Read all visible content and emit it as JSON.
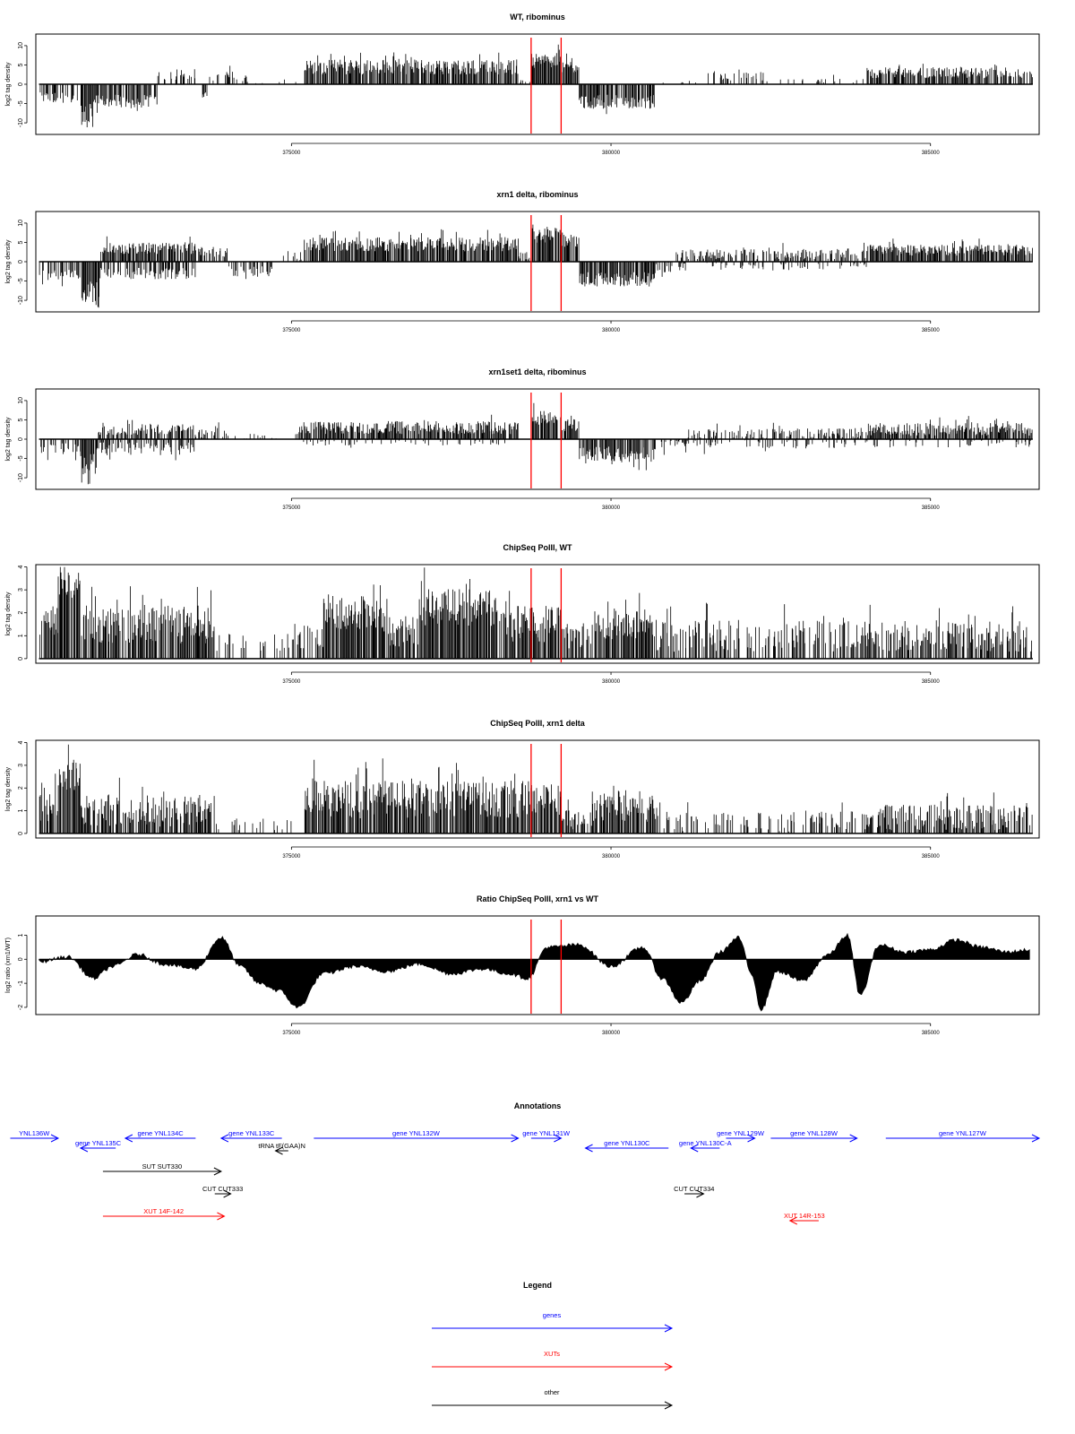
{
  "chart_data": [
    {
      "type": "bar",
      "title": "WT, ribominus",
      "ylabel": "log2 tag density",
      "xlim": [
        371000,
        386700
      ],
      "ylim": [
        -13,
        13
      ],
      "yticks": [
        10,
        5,
        0,
        -5,
        -10
      ],
      "xticks": [
        375000,
        380000,
        385000
      ],
      "markers": [
        378750,
        379220
      ],
      "regions": [
        {
          "x0": 371050,
          "x1": 371700,
          "v": -3.5,
          "amp": 1.0,
          "density": 0.55
        },
        {
          "x0": 371700,
          "x1": 371900,
          "v": -8.5,
          "amp": 2.5,
          "density": 0.95
        },
        {
          "x0": 371900,
          "x1": 372900,
          "v": -4.5,
          "amp": 1.3,
          "density": 0.8
        },
        {
          "x0": 372900,
          "x1": 373500,
          "v": 2.5,
          "amp": 1.0,
          "density": 0.4
        },
        {
          "x0": 373600,
          "x1": 373700,
          "v": -3.0,
          "amp": 1.0,
          "density": 0.5
        },
        {
          "x0": 373700,
          "x1": 374300,
          "v": 2.0,
          "amp": 1.0,
          "density": 0.35
        },
        {
          "x0": 374300,
          "x1": 375150,
          "v": 0.3,
          "amp": 0.5,
          "density": 0.15
        },
        {
          "x0": 375200,
          "x1": 378550,
          "v": 4.5,
          "amp": 1.4,
          "density": 0.9
        },
        {
          "x0": 378550,
          "x1": 378750,
          "v": 0.6,
          "amp": 0.4,
          "density": 0.3
        },
        {
          "x0": 378750,
          "x1": 379220,
          "v": 6.0,
          "amp": 1.5,
          "density": 0.95
        },
        {
          "x0": 379220,
          "x1": 379500,
          "v": 4.5,
          "amp": 1.2,
          "density": 0.9
        },
        {
          "x0": 379500,
          "x1": 380700,
          "v": -4.5,
          "amp": 1.3,
          "density": 0.85
        },
        {
          "x0": 380700,
          "x1": 381500,
          "v": 0.3,
          "amp": 0.6,
          "density": 0.15
        },
        {
          "x0": 381500,
          "x1": 382400,
          "v": 2.0,
          "amp": 0.9,
          "density": 0.4
        },
        {
          "x0": 382400,
          "x1": 384000,
          "v": 0.4,
          "amp": 0.7,
          "density": 0.2
        },
        {
          "x0": 384000,
          "x1": 386600,
          "v": 3.0,
          "amp": 1.0,
          "density": 0.8
        }
      ]
    },
    {
      "type": "bar",
      "title": "xrn1 delta, ribominus",
      "ylabel": "log2 tag density",
      "xlim": [
        371000,
        386700
      ],
      "ylim": [
        -13,
        13
      ],
      "yticks": [
        10,
        5,
        0,
        -5,
        -10
      ],
      "xticks": [
        375000,
        380000,
        385000
      ],
      "markers": [
        378750,
        379220
      ],
      "regions": [
        {
          "x0": 371050,
          "x1": 371700,
          "v": -3.5,
          "amp": 1.0,
          "density": 0.6
        },
        {
          "x0": 371700,
          "x1": 372000,
          "v": -8.5,
          "amp": 2.5,
          "density": 0.95
        },
        {
          "x0": 372000,
          "x1": 373500,
          "v": 3.5,
          "amp": 1.1,
          "density": 0.85
        },
        {
          "x0": 372000,
          "x1": 373500,
          "v": -3.0,
          "amp": 1.1,
          "density": 0.5
        },
        {
          "x0": 373500,
          "x1": 374000,
          "v": 2.5,
          "amp": 1.0,
          "density": 0.6
        },
        {
          "x0": 374000,
          "x1": 374700,
          "v": -2.5,
          "amp": 1.0,
          "density": 0.5
        },
        {
          "x0": 374800,
          "x1": 375200,
          "v": 1.5,
          "amp": 1.0,
          "density": 0.3
        },
        {
          "x0": 375200,
          "x1": 378550,
          "v": 4.5,
          "amp": 1.3,
          "density": 0.92
        },
        {
          "x0": 378550,
          "x1": 378750,
          "v": 1.5,
          "amp": 0.8,
          "density": 0.5
        },
        {
          "x0": 378750,
          "x1": 379220,
          "v": 7.0,
          "amp": 1.5,
          "density": 0.95
        },
        {
          "x0": 379220,
          "x1": 379500,
          "v": 5.5,
          "amp": 1.2,
          "density": 0.9
        },
        {
          "x0": 379500,
          "x1": 380700,
          "v": -4.5,
          "amp": 1.4,
          "density": 0.9
        },
        {
          "x0": 380700,
          "x1": 381200,
          "v": -1.5,
          "amp": 1.0,
          "density": 0.5
        },
        {
          "x0": 381000,
          "x1": 384000,
          "v": 2.0,
          "amp": 1.0,
          "density": 0.55
        },
        {
          "x0": 381500,
          "x1": 384000,
          "v": -1.0,
          "amp": 0.8,
          "density": 0.3
        },
        {
          "x0": 384000,
          "x1": 386600,
          "v": 3.0,
          "amp": 1.0,
          "density": 0.9
        }
      ]
    },
    {
      "type": "bar",
      "title": "xrn1set1 delta, ribominus",
      "ylabel": "log2 tag density",
      "xlim": [
        371000,
        386700
      ],
      "ylim": [
        -13,
        13
      ],
      "yticks": [
        10,
        5,
        0,
        -5,
        -10
      ],
      "xticks": [
        375000,
        380000,
        385000
      ],
      "markers": [
        378750,
        379220
      ],
      "regions": [
        {
          "x0": 371050,
          "x1": 371700,
          "v": -2.5,
          "amp": 1.0,
          "density": 0.5
        },
        {
          "x0": 371700,
          "x1": 371950,
          "v": -6.5,
          "amp": 2.2,
          "density": 0.9
        },
        {
          "x0": 371950,
          "x1": 373500,
          "v": 2.5,
          "amp": 1.0,
          "density": 0.7
        },
        {
          "x0": 371950,
          "x1": 373500,
          "v": -2.5,
          "amp": 1.2,
          "density": 0.55
        },
        {
          "x0": 373500,
          "x1": 374000,
          "v": 1.5,
          "amp": 1.0,
          "density": 0.5
        },
        {
          "x0": 374000,
          "x1": 375100,
          "v": 0.3,
          "amp": 0.8,
          "density": 0.2
        },
        {
          "x0": 375100,
          "x1": 378550,
          "v": 3.0,
          "amp": 1.2,
          "density": 0.85
        },
        {
          "x0": 375100,
          "x1": 378550,
          "v": -0.8,
          "amp": 0.6,
          "density": 0.2
        },
        {
          "x0": 378750,
          "x1": 379220,
          "v": 5.5,
          "amp": 1.3,
          "density": 0.95
        },
        {
          "x0": 379220,
          "x1": 379500,
          "v": 3.5,
          "amp": 1.2,
          "density": 0.9
        },
        {
          "x0": 379500,
          "x1": 380700,
          "v": -4.0,
          "amp": 1.5,
          "density": 0.85
        },
        {
          "x0": 380700,
          "x1": 381200,
          "v": -1.5,
          "amp": 1.0,
          "density": 0.4
        },
        {
          "x0": 381200,
          "x1": 384000,
          "v": 1.5,
          "amp": 1.0,
          "density": 0.5
        },
        {
          "x0": 381200,
          "x1": 384000,
          "v": -1.0,
          "amp": 1.0,
          "density": 0.3
        },
        {
          "x0": 384000,
          "x1": 386600,
          "v": 2.5,
          "amp": 1.2,
          "density": 0.85
        },
        {
          "x0": 384000,
          "x1": 386600,
          "v": -1.0,
          "amp": 0.8,
          "density": 0.25
        }
      ]
    },
    {
      "type": "bar",
      "title": "ChipSeq PolII, WT",
      "ylabel": "log2 tag density",
      "xlim": [
        371000,
        386700
      ],
      "ylim": [
        -0.2,
        4.1
      ],
      "yticks": [
        4,
        3,
        2,
        1,
        0
      ],
      "xticks": [
        375000,
        380000,
        385000
      ],
      "markers": [
        378750,
        379220
      ],
      "regions": [
        {
          "x0": 371050,
          "x1": 371350,
          "v": 1.6,
          "amp": 0.5,
          "density": 0.8
        },
        {
          "x0": 371350,
          "x1": 371700,
          "v": 3.2,
          "amp": 0.4,
          "density": 0.95
        },
        {
          "x0": 371700,
          "x1": 373800,
          "v": 1.5,
          "amp": 0.6,
          "density": 0.85
        },
        {
          "x0": 373800,
          "x1": 375000,
          "v": 0.7,
          "amp": 0.3,
          "density": 0.2
        },
        {
          "x0": 375000,
          "x1": 375500,
          "v": 1.0,
          "amp": 0.4,
          "density": 0.6
        },
        {
          "x0": 375500,
          "x1": 376500,
          "v": 2.0,
          "amp": 0.6,
          "density": 0.9
        },
        {
          "x0": 376500,
          "x1": 377000,
          "v": 1.2,
          "amp": 0.5,
          "density": 0.85
        },
        {
          "x0": 377000,
          "x1": 378200,
          "v": 2.2,
          "amp": 0.6,
          "density": 0.9
        },
        {
          "x0": 378200,
          "x1": 378750,
          "v": 1.5,
          "amp": 0.6,
          "density": 0.8
        },
        {
          "x0": 378750,
          "x1": 379220,
          "v": 1.5,
          "amp": 0.6,
          "density": 0.85
        },
        {
          "x0": 379220,
          "x1": 379700,
          "v": 1.0,
          "amp": 0.4,
          "density": 0.7
        },
        {
          "x0": 379700,
          "x1": 380700,
          "v": 1.5,
          "amp": 0.5,
          "density": 0.85
        },
        {
          "x0": 380700,
          "x1": 382800,
          "v": 1.0,
          "amp": 0.5,
          "density": 0.45
        },
        {
          "x0": 382800,
          "x1": 384000,
          "v": 1.0,
          "amp": 0.5,
          "density": 0.6
        },
        {
          "x0": 384000,
          "x1": 386600,
          "v": 1.0,
          "amp": 0.5,
          "density": 0.7
        }
      ]
    },
    {
      "type": "bar",
      "title": "ChipSeq PolII, xrn1 delta",
      "ylabel": "log2 tag density",
      "xlim": [
        371000,
        386700
      ],
      "ylim": [
        -0.2,
        4.1
      ],
      "yticks": [
        4,
        3,
        2,
        1,
        0
      ],
      "xticks": [
        375000,
        380000,
        385000
      ],
      "markers": [
        378750,
        379220
      ],
      "regions": [
        {
          "x0": 371050,
          "x1": 371350,
          "v": 1.2,
          "amp": 0.5,
          "density": 0.8
        },
        {
          "x0": 371350,
          "x1": 371700,
          "v": 2.6,
          "amp": 0.5,
          "density": 0.95
        },
        {
          "x0": 371700,
          "x1": 373800,
          "v": 1.0,
          "amp": 0.5,
          "density": 0.8
        },
        {
          "x0": 373800,
          "x1": 375000,
          "v": 0.4,
          "amp": 0.2,
          "density": 0.2
        },
        {
          "x0": 375200,
          "x1": 377000,
          "v": 1.5,
          "amp": 0.6,
          "density": 0.9
        },
        {
          "x0": 377000,
          "x1": 378750,
          "v": 1.5,
          "amp": 0.6,
          "density": 0.9
        },
        {
          "x0": 378750,
          "x1": 379220,
          "v": 1.5,
          "amp": 0.5,
          "density": 0.85
        },
        {
          "x0": 379220,
          "x1": 379700,
          "v": 0.6,
          "amp": 0.3,
          "density": 0.6
        },
        {
          "x0": 379700,
          "x1": 380700,
          "v": 1.2,
          "amp": 0.5,
          "density": 0.85
        },
        {
          "x0": 380700,
          "x1": 382800,
          "v": 0.5,
          "amp": 0.3,
          "density": 0.35
        },
        {
          "x0": 382800,
          "x1": 384000,
          "v": 0.6,
          "amp": 0.3,
          "density": 0.4
        },
        {
          "x0": 384000,
          "x1": 386600,
          "v": 0.7,
          "amp": 0.4,
          "density": 0.65
        }
      ]
    },
    {
      "type": "area",
      "title": "Ratio ChipSeq PolII, xrn1 vs WT",
      "ylabel": "log2 ratio (xrn1/WT)",
      "xlim": [
        371000,
        386700
      ],
      "ylim": [
        -2.3,
        1.8
      ],
      "yticks": [
        1,
        0,
        -1,
        -2
      ],
      "xticks": [
        375000,
        380000,
        385000
      ],
      "markers": [
        378750,
        379220
      ],
      "x": [
        371050,
        371500,
        371900,
        372200,
        372600,
        373000,
        373500,
        373900,
        374200,
        374500,
        374800,
        375100,
        375500,
        376000,
        376500,
        377000,
        377500,
        378000,
        378400,
        378700,
        379000,
        379500,
        380000,
        380500,
        380800,
        381100,
        381400,
        381700,
        382000,
        382200,
        382350,
        382600,
        383000,
        383400,
        383700,
        383900,
        384200,
        384600,
        385000,
        385400,
        385800,
        386200,
        386550
      ],
      "values": [
        -0.1,
        0.1,
        -0.8,
        -0.3,
        0.2,
        -0.2,
        -0.4,
        0.9,
        -0.3,
        -1.0,
        -1.3,
        -2.0,
        -0.6,
        -0.3,
        -0.5,
        -0.2,
        -0.6,
        -0.4,
        -0.6,
        -0.8,
        0.5,
        0.6,
        -0.3,
        0.5,
        -0.8,
        -1.8,
        -0.9,
        0.3,
        0.9,
        -0.6,
        -2.1,
        -0.5,
        -0.9,
        0.2,
        1.0,
        -1.5,
        0.6,
        0.3,
        0.4,
        0.8,
        0.5,
        0.3,
        0.4
      ]
    }
  ],
  "annotations": {
    "title": "Annotations",
    "items": [
      {
        "label": "YNL136W",
        "x0": 370600,
        "x1": 371350,
        "dir": "right",
        "color": "#0000ff"
      },
      {
        "label": "gene YNL135C",
        "x0": 371700,
        "x1": 372250,
        "dir": "left",
        "color": "#0000ff"
      },
      {
        "label": "gene YNL134C",
        "x0": 372400,
        "x1": 373500,
        "dir": "left",
        "color": "#0000ff"
      },
      {
        "label": "gene YNL133C",
        "x0": 373900,
        "x1": 374850,
        "dir": "left",
        "color": "#0000ff"
      },
      {
        "label": "tRNA tF(GAA)N",
        "x0": 374750,
        "x1": 374950,
        "dir": "left",
        "color": "#000000"
      },
      {
        "label": "gene YNL132W",
        "x0": 375350,
        "x1": 378550,
        "dir": "right",
        "color": "#0000ff"
      },
      {
        "label": "gene YNL131W",
        "x0": 378750,
        "x1": 379220,
        "dir": "right",
        "color": "#0000ff"
      },
      {
        "label": "gene YNL130C",
        "x0": 379600,
        "x1": 380900,
        "dir": "left",
        "color": "#0000ff"
      },
      {
        "label": "gene YNL130C-A",
        "x0": 381250,
        "x1": 381700,
        "dir": "left",
        "color": "#0000ff"
      },
      {
        "label": "gene YNL129W",
        "x0": 381800,
        "x1": 382250,
        "dir": "right",
        "color": "#0000ff"
      },
      {
        "label": "gene YNL128W",
        "x0": 382500,
        "x1": 383850,
        "dir": "right",
        "color": "#0000ff"
      },
      {
        "label": "gene YNL127W",
        "x0": 384300,
        "x1": 386700,
        "dir": "right",
        "color": "#0000ff"
      },
      {
        "label": "SUT SUT330",
        "x0": 372050,
        "x1": 373900,
        "dir": "right",
        "color": "#000000"
      },
      {
        "label": "CUT CUT333",
        "x0": 373800,
        "x1": 374050,
        "dir": "right",
        "color": "#000000"
      },
      {
        "label": "CUT CUT334",
        "x0": 381150,
        "x1": 381450,
        "dir": "right",
        "color": "#000000"
      },
      {
        "label": "XUT 14F-142",
        "x0": 372050,
        "x1": 373950,
        "dir": "right",
        "color": "#ff0000"
      },
      {
        "label": "XUT 14R-153",
        "x0": 382800,
        "x1": 383250,
        "dir": "left",
        "color": "#ff0000"
      }
    ]
  },
  "legend": {
    "title": "Legend",
    "items": [
      {
        "label": "genes",
        "color": "#0000ff"
      },
      {
        "label": "XUTs",
        "color": "#ff0000"
      },
      {
        "label": "other",
        "color": "#000000"
      }
    ]
  }
}
